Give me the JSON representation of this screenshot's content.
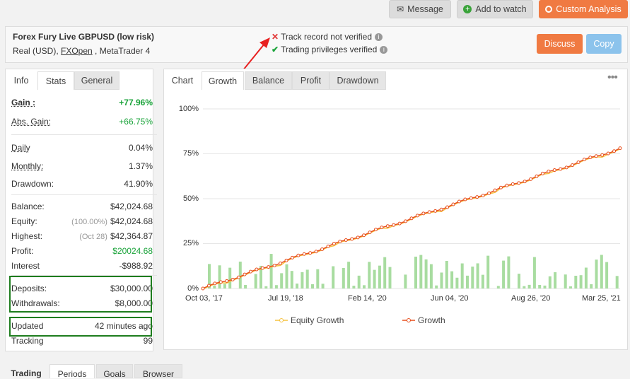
{
  "top_buttons": {
    "message": "Message",
    "add_to_watch": "Add to watch",
    "custom_analysis": "Custom Analysis"
  },
  "header": {
    "title": "Forex Fury Live GBPUSD (low risk)",
    "account_prefix": "Real (USD), ",
    "broker": "FXOpen",
    "account_suffix": " , MetaTrader 4",
    "track_record": "Track record not verified",
    "trading_privileges": "Trading privileges verified",
    "discuss": "Discuss",
    "copy": "Copy"
  },
  "left_tabs": [
    "Info",
    "Stats",
    "General"
  ],
  "stats": {
    "gain_label": "Gain :",
    "gain_value": "+77.96%",
    "abs_gain_label": "Abs. Gain:",
    "abs_gain_value": "+66.75%",
    "daily_label": "Daily",
    "daily_value": "0.04%",
    "monthly_label": "Monthly:",
    "monthly_value": "1.37%",
    "drawdown_label": "Drawdown:",
    "drawdown_value": "41.90%",
    "balance_label": "Balance:",
    "balance_value": "$42,024.68",
    "equity_label": "Equity:",
    "equity_pct": "(100.00%)",
    "equity_value": "$42,024.68",
    "highest_label": "Highest:",
    "highest_date": "(Oct 28)",
    "highest_value": "$42,364.87",
    "profit_label": "Profit:",
    "profit_value": "$20024.68",
    "interest_label": "Interest",
    "interest_value": "-$988.92",
    "deposits_label": "Deposits:",
    "deposits_value": "$30,000.00",
    "withdrawals_label": "Withdrawals:",
    "withdrawals_value": "$8,000.00",
    "updated_label": "Updated",
    "updated_value": "42 minutes ago",
    "tracking_label": "Tracking",
    "tracking_value": "99"
  },
  "chart_tabs": [
    "Chart",
    "Growth",
    "Balance",
    "Profit",
    "Drawdown"
  ],
  "menu_icon": "more-dots-icon",
  "colors": {
    "growth": "#e8501f",
    "equity": "#f5c342",
    "bars": "#a8dca0",
    "accent_orange": "#f07a42",
    "accent_blue": "#8cc3ec",
    "verified_green": "#1aa33a",
    "not_verified_red": "#e03030"
  },
  "chart_data": {
    "type": "line",
    "y_ticks": [
      "100%",
      "75%",
      "50%",
      "25%",
      "0%"
    ],
    "x_ticks": [
      "Oct 03, '17",
      "Jul 19, '18",
      "Feb 14, '20",
      "Jun 04, '20",
      "Aug 26, '20",
      "Mar 25, '21"
    ],
    "ylim": [
      0,
      100
    ],
    "series": [
      {
        "name": "Equity Growth",
        "end_value": 74
      },
      {
        "name": "Growth",
        "start_value": 0,
        "end_value": 78
      }
    ]
  },
  "bottom_tabs": [
    "Trading",
    "Periods",
    "Goals",
    "Browser"
  ]
}
